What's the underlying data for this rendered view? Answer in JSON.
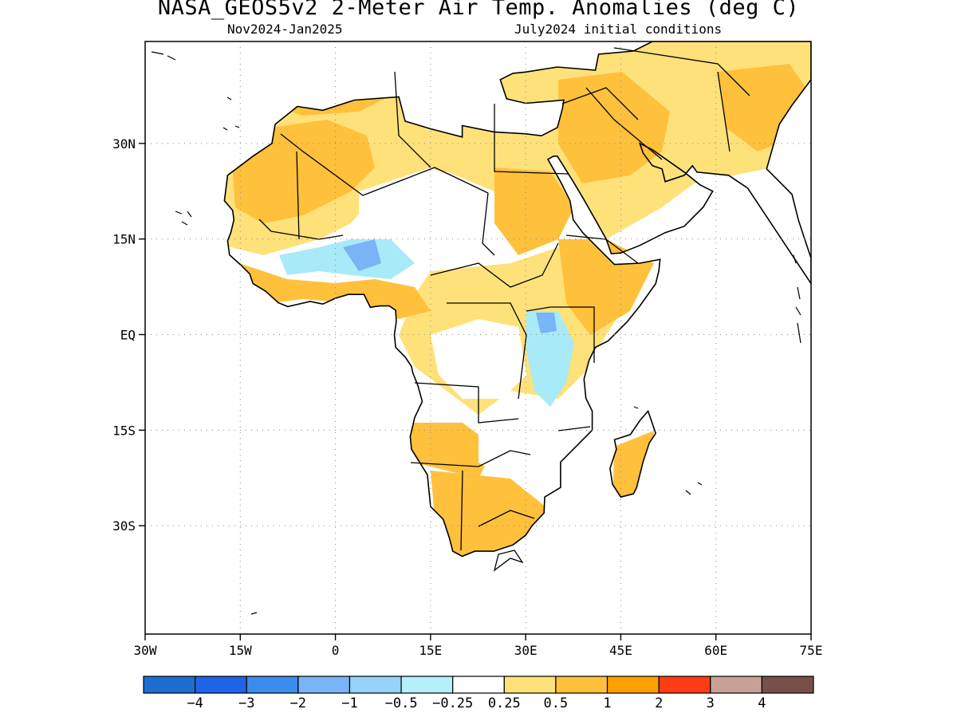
{
  "header": {
    "title": "NASA_GEOS5v2 2-Meter Air Temp. Anomalies (deg C)",
    "subtitle_left": "Nov2024-Jan2025",
    "subtitle_right": "July2024 initial conditions"
  },
  "map": {
    "lon_range": [
      -30,
      75
    ],
    "lat_range": [
      -47,
      46
    ],
    "lat_ticks": [
      {
        "value": 30,
        "label": "30N"
      },
      {
        "value": 15,
        "label": "15N"
      },
      {
        "value": 0,
        "label": "EQ"
      },
      {
        "value": -15,
        "label": "15S"
      },
      {
        "value": -30,
        "label": "30S"
      }
    ],
    "lon_ticks": [
      {
        "value": -30,
        "label": "30W"
      },
      {
        "value": -15,
        "label": "15W"
      },
      {
        "value": 0,
        "label": "0"
      },
      {
        "value": 15,
        "label": "15E"
      },
      {
        "value": 30,
        "label": "30E"
      },
      {
        "value": 45,
        "label": "45E"
      },
      {
        "value": 60,
        "label": "60E"
      },
      {
        "value": 75,
        "label": "75E"
      }
    ],
    "grid": "dotted",
    "colors": {
      "warm_light": "#ffe17a",
      "warm_mid": "#ffc03c",
      "warm_strong": "#ffa000",
      "cool_light": "#a8eaf8",
      "cool_mid": "#96c8fa",
      "cool_strong": "#3c8cee"
    }
  },
  "colorbar": {
    "colors": [
      "#1e6ed2",
      "#1f64e6",
      "#3c8cee",
      "#78b4f6",
      "#96d2fa",
      "#b4f0fa",
      "#ffffff",
      "#ffe17a",
      "#ffc03c",
      "#ffa000",
      "#ff3c14",
      "#c8a096",
      "#78504a"
    ],
    "labels": [
      "-4",
      "-3",
      "-2",
      "-1",
      "-0.5",
      "-0.25",
      "0.25",
      "0.5",
      "1",
      "2",
      "3",
      "4"
    ]
  }
}
